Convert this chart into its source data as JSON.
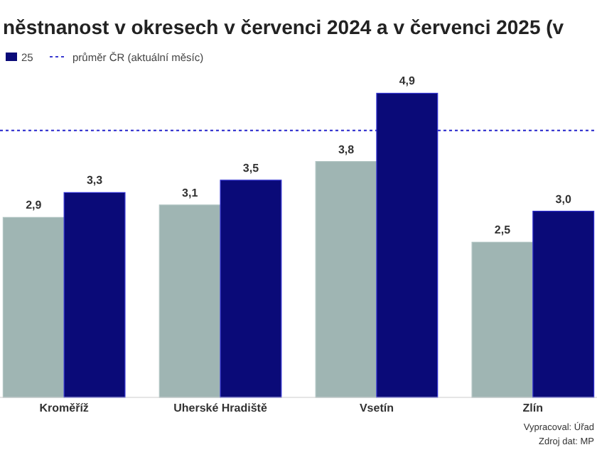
{
  "chart_data": {
    "type": "bar",
    "title": "něstnanost v okresech v červenci 2024 a v červenci 2025 (v",
    "categories": [
      "Kroměříž",
      "Uherské Hradiště",
      "Vsetín",
      "Zlín"
    ],
    "series": [
      {
        "color": "#9fb5b3",
        "values": [
          2.9,
          3.1,
          3.8,
          2.5
        ],
        "value_labels": [
          "2,9",
          "3,1",
          "3,8",
          "2,5"
        ]
      },
      {
        "name": "25",
        "color": "#0a0a78",
        "values": [
          3.3,
          3.5,
          4.9,
          3.0
        ],
        "value_labels": [
          "3,3",
          "3,5",
          "4,9",
          "3,0"
        ]
      }
    ],
    "legend": "top left",
    "ref_lines": [
      {
        "axis": "y",
        "value": 4.3,
        "label": "průměr ČR (aktuální měsíc)",
        "color": "#3a3ad0",
        "line_style": "dotted"
      }
    ],
    "annotations": [
      "Vypracoval: Úřad",
      "Zdroj dat: MP"
    ]
  }
}
